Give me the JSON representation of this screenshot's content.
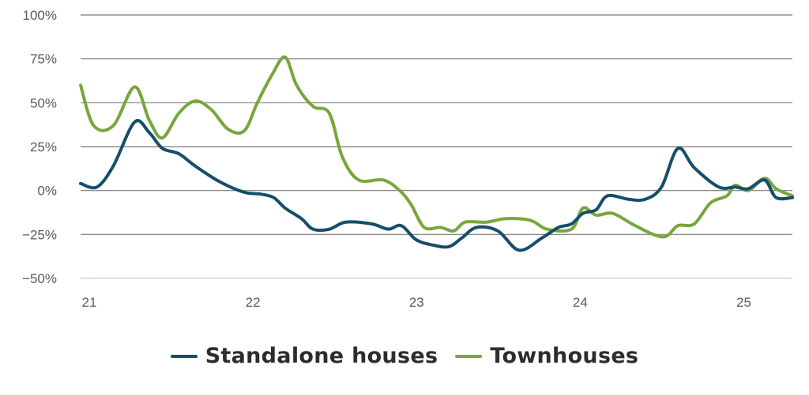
{
  "chart_data": {
    "type": "line",
    "title": "",
    "xlabel": "",
    "ylabel": "",
    "ylim": [
      -50,
      100
    ],
    "xlim": [
      21,
      25.35
    ],
    "y_ticks": [
      100,
      75,
      50,
      25,
      0,
      -25,
      -50
    ],
    "y_tick_labels": [
      "100%",
      "75%",
      "50%",
      "25%",
      "0%",
      "−25%",
      "−50%"
    ],
    "x_ticks": [
      21,
      22,
      23,
      24,
      25
    ],
    "x_tick_labels": [
      "21",
      "22",
      "23",
      "24",
      "25"
    ],
    "grid": true,
    "legend_position": "bottom",
    "series": [
      {
        "name": "Standalone houses",
        "color": "#164e6a",
        "x": [
          21.0,
          21.1,
          21.2,
          21.33,
          21.42,
          21.5,
          21.6,
          21.7,
          21.85,
          22.0,
          22.1,
          22.18,
          22.25,
          22.35,
          22.42,
          22.52,
          22.62,
          22.78,
          22.88,
          22.96,
          23.05,
          23.15,
          23.25,
          23.33,
          23.42,
          23.55,
          23.68,
          23.82,
          23.92,
          24.0,
          24.07,
          24.15,
          24.22,
          24.35,
          24.45,
          24.55,
          24.65,
          24.75,
          24.9,
          25.0,
          25.08,
          25.18,
          25.25,
          25.35
        ],
        "y": [
          4,
          2,
          14,
          39,
          33,
          24,
          21,
          14,
          5,
          -1,
          -2,
          -4,
          -10,
          -16,
          -22,
          -22,
          -18,
          -19,
          -22,
          -20,
          -28,
          -31,
          -32,
          -27,
          -21,
          -23,
          -34,
          -27,
          -21,
          -19,
          -13,
          -11,
          -3,
          -5,
          -5,
          2,
          24,
          13,
          2,
          2,
          1,
          6,
          -4,
          -4
        ]
      },
      {
        "name": "Townhouses",
        "color": "#78a63c",
        "x": [
          21.0,
          21.08,
          21.2,
          21.33,
          21.42,
          21.5,
          21.6,
          21.7,
          21.8,
          21.9,
          22.0,
          22.08,
          22.17,
          22.25,
          22.32,
          22.42,
          22.52,
          22.6,
          22.7,
          22.85,
          22.95,
          23.02,
          23.1,
          23.2,
          23.28,
          23.35,
          23.48,
          23.6,
          23.75,
          23.85,
          24.0,
          24.07,
          24.15,
          24.25,
          24.37,
          24.5,
          24.58,
          24.65,
          24.75,
          24.85,
          24.95,
          25.0,
          25.08,
          25.18,
          25.25,
          25.35
        ],
        "y": [
          60,
          37,
          37,
          59,
          40,
          30,
          44,
          51,
          46,
          35,
          34,
          50,
          66,
          76,
          60,
          48,
          44,
          19,
          6,
          6,
          0,
          -8,
          -21,
          -21,
          -23,
          -18,
          -18,
          -16,
          -17,
          -22,
          -22,
          -10,
          -14,
          -13,
          -19,
          -25,
          -26,
          -20,
          -19,
          -7,
          -3,
          3,
          0,
          7,
          1,
          -3
        ]
      }
    ]
  }
}
